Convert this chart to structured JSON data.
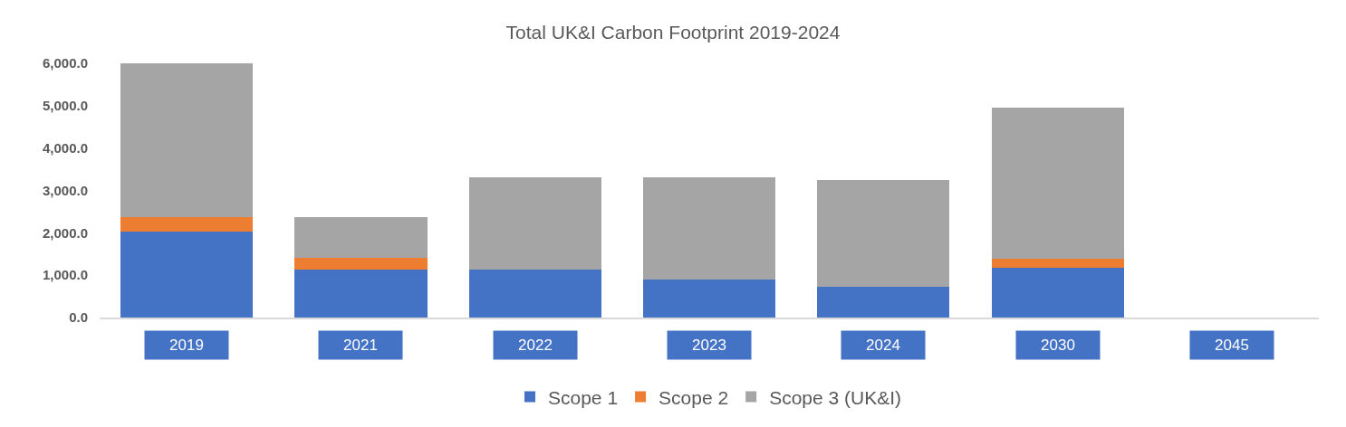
{
  "chart_data": {
    "type": "bar",
    "title": "Total UK&I Carbon Footprint 2019-2024",
    "stacked": true,
    "categories": [
      "2019",
      "2021",
      "2022",
      "2023",
      "2024",
      "2030",
      "2045"
    ],
    "series": [
      {
        "name": "Scope 1",
        "color": "#4472c4",
        "values": [
          2030,
          1140,
          1140,
          900,
          720,
          1180,
          0
        ]
      },
      {
        "name": "Scope 2",
        "color": "#ed7d31",
        "values": [
          330,
          260,
          0,
          0,
          0,
          200,
          0
        ]
      },
      {
        "name": "Scope 3 (UK&I)",
        "color": "#a5a5a5",
        "values": [
          3640,
          960,
          2180,
          2400,
          2530,
          3580,
          0
        ]
      }
    ],
    "ylim": [
      0,
      6000
    ],
    "yticks": [
      {
        "value": 0,
        "label": "0.0"
      },
      {
        "value": 1000,
        "label": "1,000.0"
      },
      {
        "value": 2000,
        "label": "2,000.0"
      },
      {
        "value": 3000,
        "label": "3,000.0"
      },
      {
        "value": 4000,
        "label": "4,000.0"
      },
      {
        "value": 5000,
        "label": "5,000.0"
      },
      {
        "value": 6000,
        "label": "6,000.0"
      }
    ],
    "grid": false,
    "legend": "bottom"
  }
}
